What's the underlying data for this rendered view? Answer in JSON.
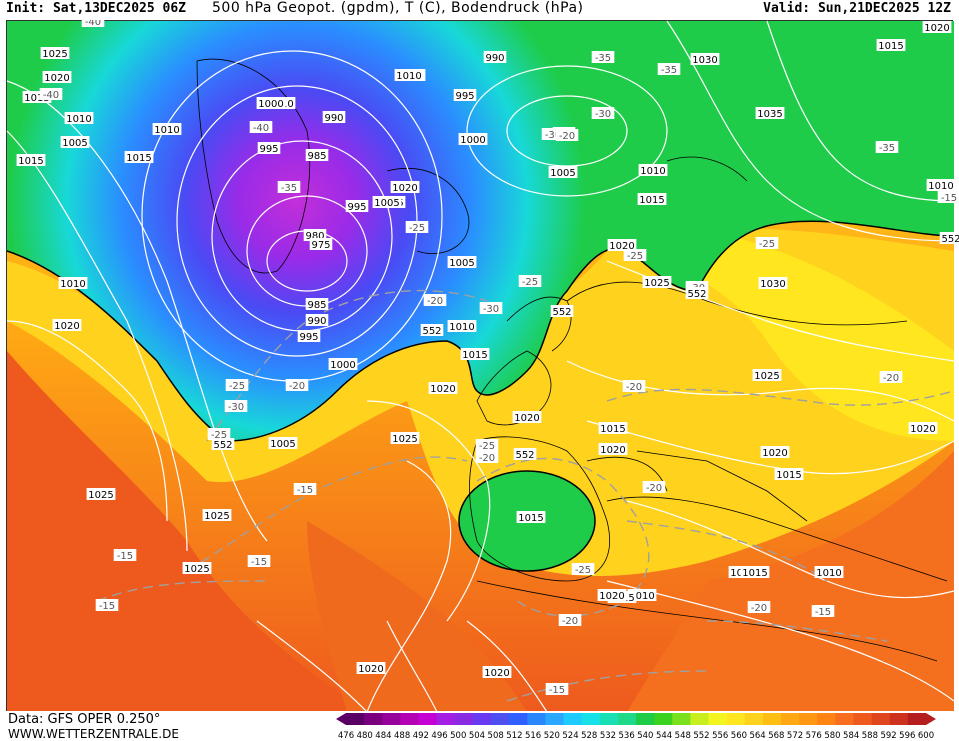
{
  "header": {
    "init": "Init: Sat,13DEC2025 06Z",
    "title": "500 hPa Geopot. (gpdm), T (C), Bodendruck (hPa)",
    "valid": "Valid: Sun,21DEC2025 12Z"
  },
  "footer": {
    "data_source": "Data: GFS OPER 0.250°",
    "website": "WWW.WETTERZENTRALE.DE"
  },
  "legend": {
    "values": [
      "476",
      "480",
      "484",
      "488",
      "492",
      "496",
      "500",
      "504",
      "508",
      "512",
      "516",
      "520",
      "524",
      "528",
      "532",
      "536",
      "540",
      "544",
      "548",
      "552",
      "556",
      "560",
      "564",
      "568",
      "572",
      "576",
      "580",
      "584",
      "588",
      "592",
      "596",
      "600"
    ],
    "colors": [
      "#5a0064",
      "#7a007f",
      "#96009b",
      "#b300b3",
      "#c400d4",
      "#a21fe3",
      "#8a2be2",
      "#6a3af0",
      "#4f4ff0",
      "#3060ff",
      "#2a86ff",
      "#2aa8ff",
      "#1ecbff",
      "#18e0e8",
      "#18e0b4",
      "#1ed98a",
      "#1ecc4a",
      "#3ad21e",
      "#7ae01e",
      "#c8ee1e",
      "#f4f41e",
      "#ffe61e",
      "#ffd21e",
      "#ffbe14",
      "#ffa814",
      "#ff9614",
      "#ff8214",
      "#f86e1e",
      "#ee5a1e",
      "#e0461e",
      "#cc321e",
      "#b41e1e"
    ]
  },
  "isobar_labels": [
    "1025",
    "1020",
    "1015",
    "1010",
    "1005",
    "1015",
    "1010",
    "1010",
    "1020",
    "1000",
    "995",
    "990",
    "985",
    "980",
    "975",
    "985",
    "990",
    "995",
    "1000",
    "1020",
    "1005",
    "995",
    "1010",
    "995",
    "1000",
    "990",
    "1005",
    "1015",
    "1010",
    "1020",
    "1025",
    "1030",
    "1035",
    "1015",
    "1020",
    "1010",
    "1005",
    "1010",
    "1015",
    "1020",
    "1025",
    "1020",
    "1030",
    "1025",
    "1020",
    "1020",
    "1015",
    "1020",
    "1015",
    "1015",
    "1010",
    "1000",
    "1010",
    "1005",
    "1010",
    "1015",
    "1020",
    "1025",
    "1025",
    "1025",
    "1020",
    "1020",
    "1015",
    "1020",
    "1015",
    "1005"
  ],
  "temperature_labels": [
    "-40",
    "-40",
    "-35",
    "-40",
    "-35",
    "-30",
    "-30",
    "-35",
    "-30",
    "-35",
    "-25",
    "-25",
    "-20",
    "-30",
    "-25",
    "-25",
    "-20",
    "-25",
    "-30",
    "-30",
    "-20",
    "-25",
    "-25",
    "-20",
    "-15",
    "-15",
    "-15",
    "-15",
    "-25",
    "-20",
    "-20",
    "-15",
    "-20",
    "-15",
    "-15",
    "-20",
    "-20"
  ],
  "contour_labels_552": [
    "552",
    "552",
    "552",
    "552",
    "552",
    "552"
  ],
  "colors": {
    "land_border": "#000000",
    "isobar": "#ffffff",
    "isotherm": "#a0a0a0",
    "contour_552": "#000000"
  }
}
